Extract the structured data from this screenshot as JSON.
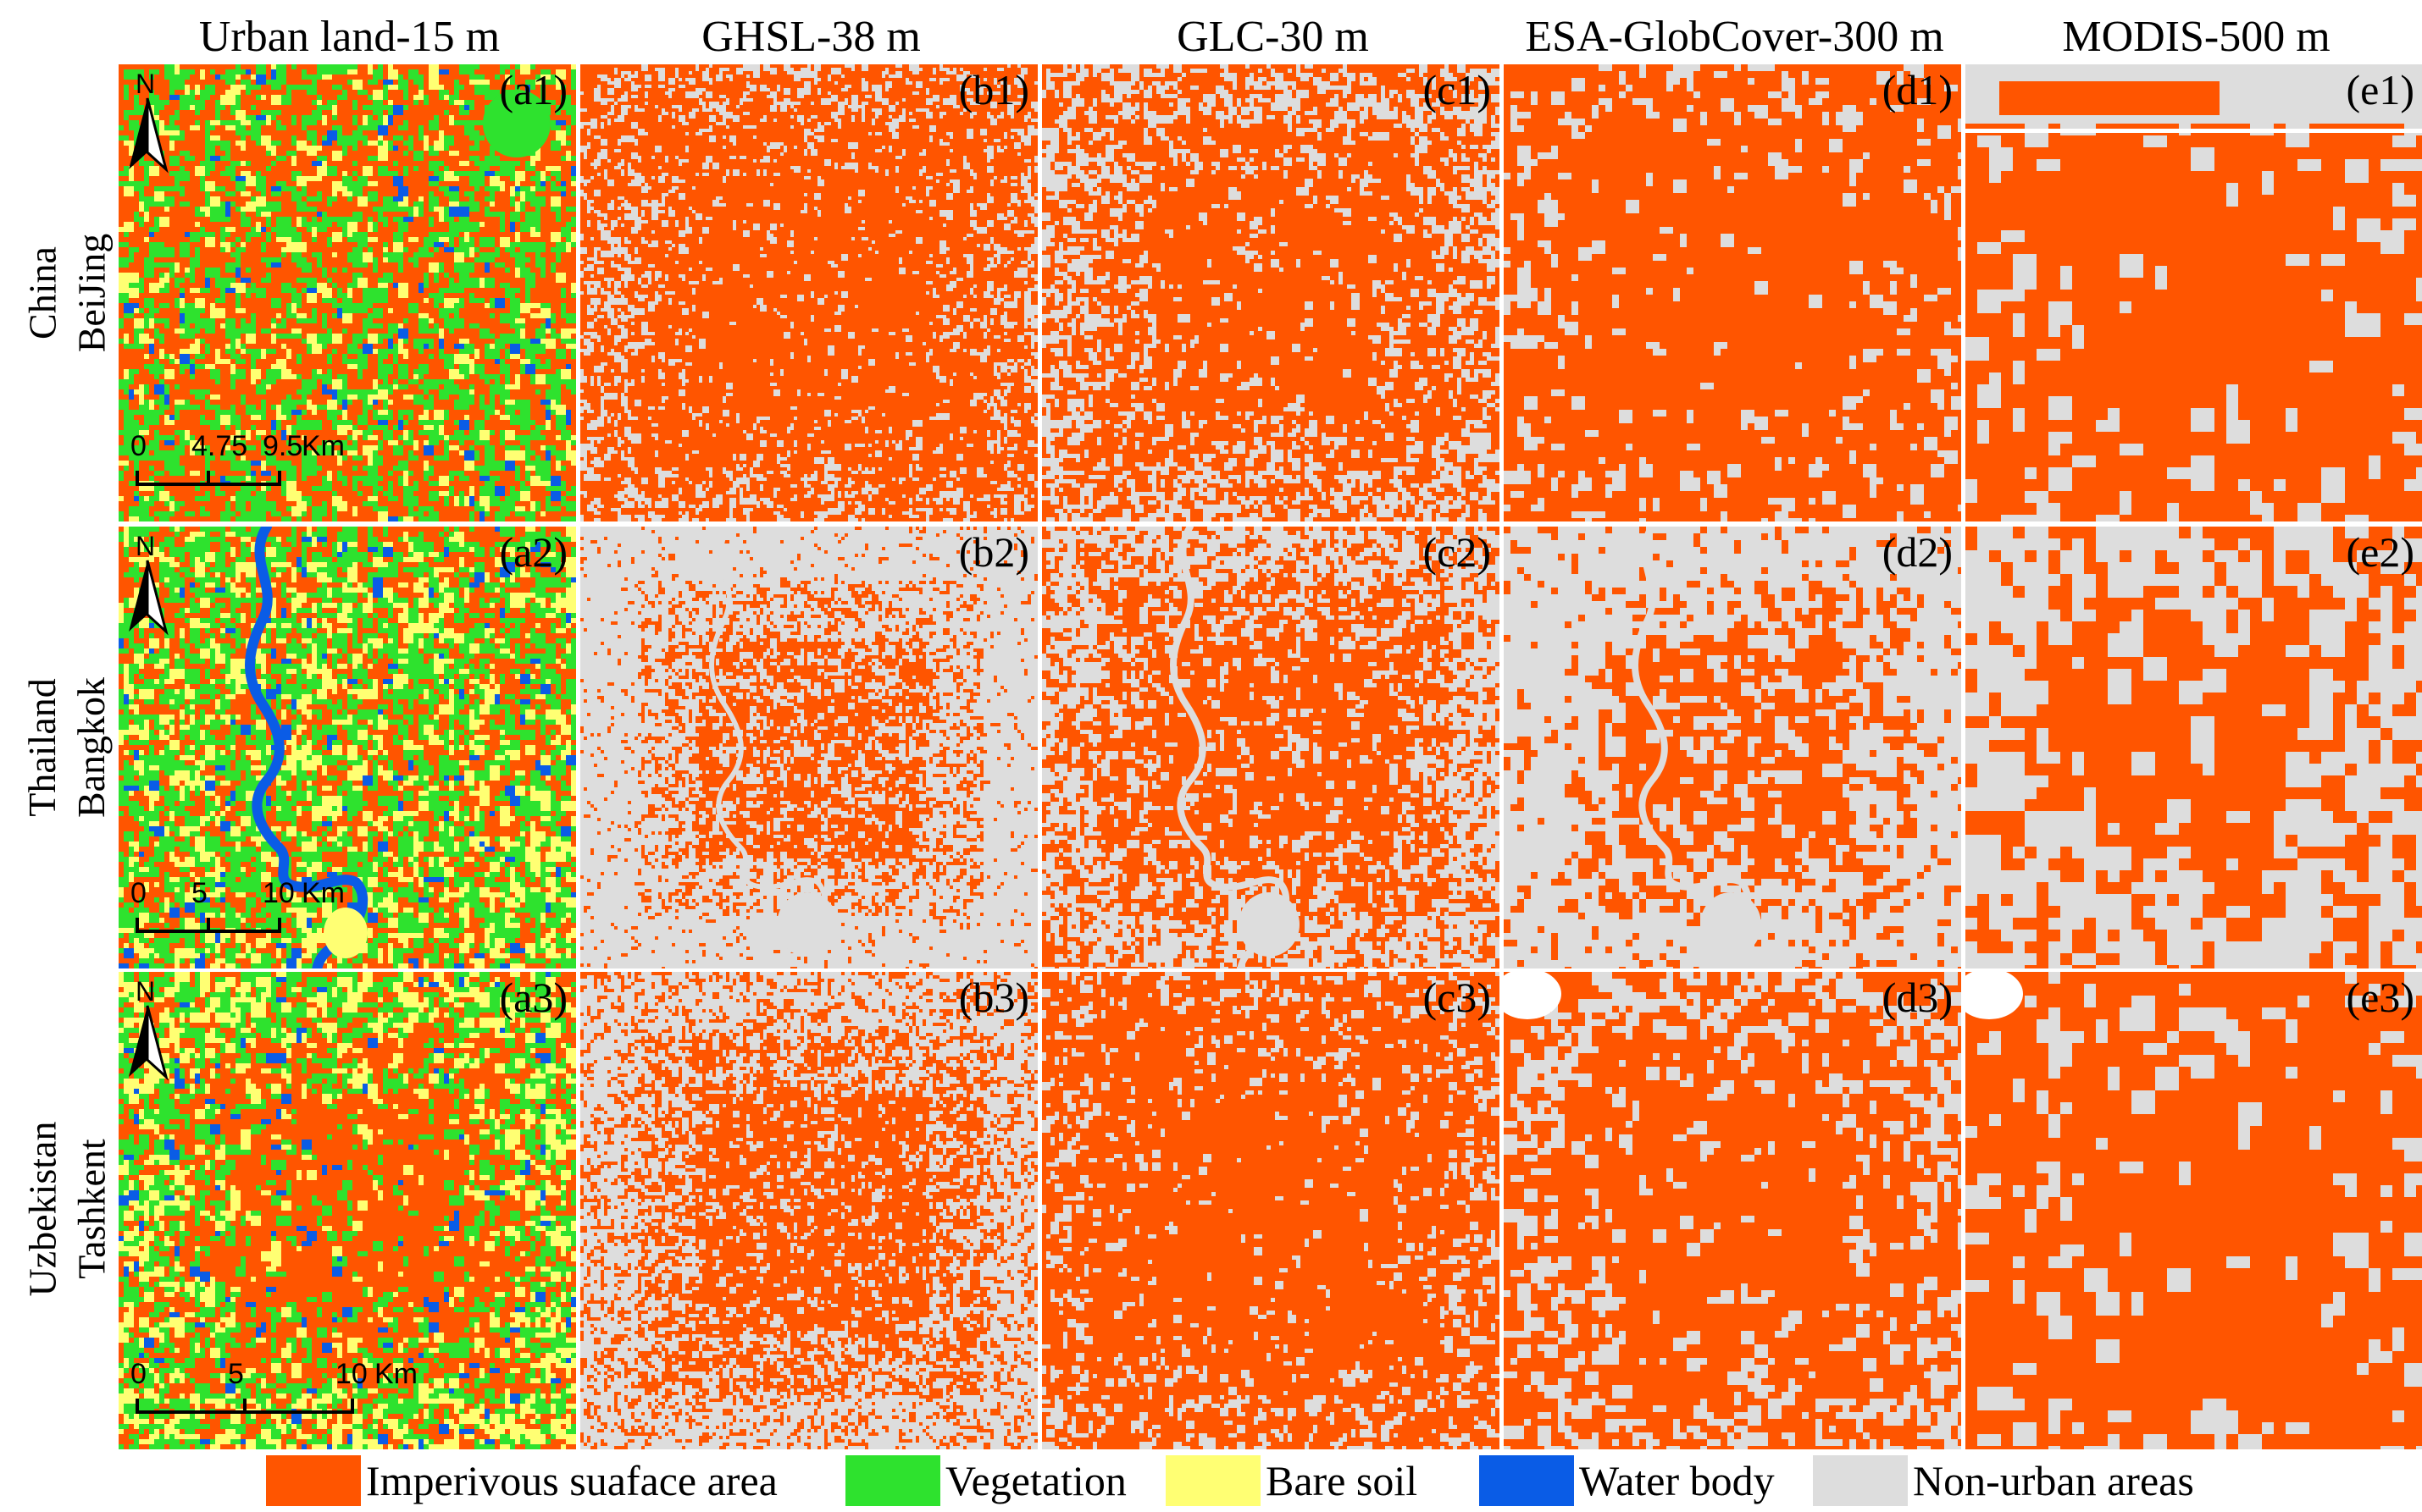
{
  "columns": [
    {
      "title": "Urban land-15 m"
    },
    {
      "title": "GHSL-38 m"
    },
    {
      "title": "GLC-30 m"
    },
    {
      "title": "ESA-GlobCover-300 m"
    },
    {
      "title": "MODIS-500 m"
    }
  ],
  "rows": [
    {
      "country": "China",
      "city": "BeiJing"
    },
    {
      "country": "Thailand",
      "city": "Bangkok"
    },
    {
      "country": "Uzbekistan",
      "city": "Tashkent"
    }
  ],
  "panels": [
    [
      "(a1)",
      "(b1)",
      "(c1)",
      "(d1)",
      "(e1)"
    ],
    [
      "(a2)",
      "(b2)",
      "(c2)",
      "(d2)",
      "(e2)"
    ],
    [
      "(a3)",
      "(b3)",
      "(c3)",
      "(d3)",
      "(e3)"
    ]
  ],
  "north_label": "N",
  "scalebars": [
    {
      "ticks": [
        "0",
        "4.75",
        "9.5"
      ],
      "unit": "Km"
    },
    {
      "ticks": [
        "0",
        "5",
        "10"
      ],
      "unit": "Km"
    },
    {
      "ticks": [
        "0",
        "5",
        "10"
      ],
      "unit": "Km"
    }
  ],
  "legend": [
    {
      "label": "Imperivous suaface area",
      "color": "#ff5500"
    },
    {
      "label": "Vegetation",
      "color": "#2ee22e"
    },
    {
      "label": "Bare soil",
      "color": "#ffff73"
    },
    {
      "label": "Water body",
      "color": "#0a5ce6"
    },
    {
      "label": "Non-urban areas",
      "color": "#dddddd"
    }
  ],
  "colors": {
    "impervious": "#ff5500",
    "vegetation": "#2ee22e",
    "bare_soil": "#ffff73",
    "water": "#0a5ce6",
    "non_urban": "#dddddd"
  }
}
